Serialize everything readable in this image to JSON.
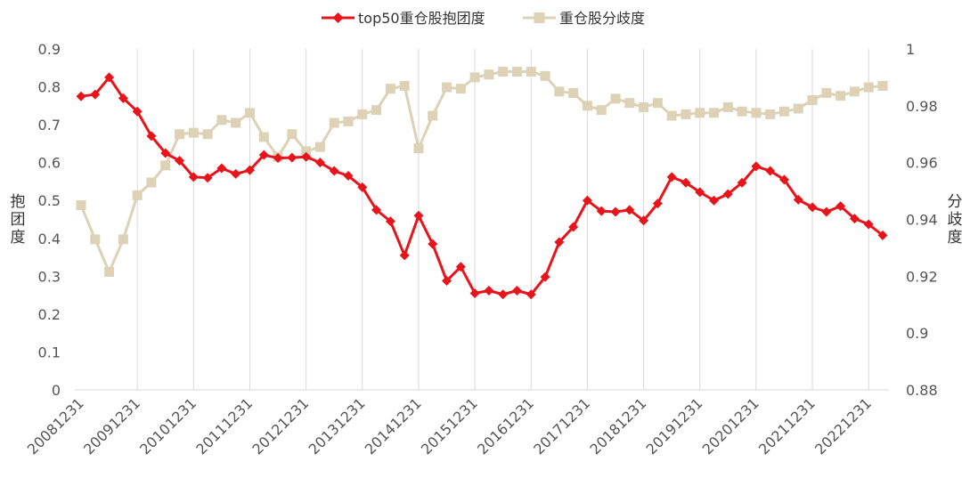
{
  "chart_data": {
    "type": "line",
    "colors": {
      "series1": "#e8141b",
      "series2": "#ddd2b6",
      "grid": "#d9d9d9",
      "text": "#555555"
    },
    "legend_position": "top-center",
    "grid": {
      "vertical": true,
      "horizontal": false
    },
    "x": [
      "20081231",
      "20090331",
      "20090630",
      "20090930",
      "20091231",
      "20100331",
      "20100630",
      "20100930",
      "20101231",
      "20110331",
      "20110630",
      "20110930",
      "20111231",
      "20120331",
      "20120630",
      "20120930",
      "20121231",
      "20130331",
      "20130630",
      "20130930",
      "20131231",
      "20140331",
      "20140630",
      "20140930",
      "20141231",
      "20150331",
      "20150630",
      "20150930",
      "20151231",
      "20160331",
      "20160630",
      "20160930",
      "20161231",
      "20170331",
      "20170630",
      "20170930",
      "20171231",
      "20180331",
      "20180630",
      "20180930",
      "20181231",
      "20190331",
      "20190630",
      "20190930",
      "20191231",
      "20200331",
      "20200630",
      "20200930",
      "20201231",
      "20210331",
      "20210630",
      "20210930",
      "20211231",
      "20220331",
      "20220630",
      "20220930",
      "20221231",
      "20230331"
    ],
    "x_tick_labels": [
      "20081231",
      "20091231",
      "20101231",
      "20111231",
      "20121231",
      "20131231",
      "20141231",
      "20151231",
      "20161231",
      "20171231",
      "20181231",
      "20191231",
      "20201231",
      "20211231",
      "20221231"
    ],
    "y_left": {
      "label": "抱团度",
      "ylim": [
        0,
        0.9
      ],
      "ticks": [
        "0",
        "0.1",
        "0.2",
        "0.3",
        "0.4",
        "0.5",
        "0.6",
        "0.7",
        "0.8",
        "0.9"
      ]
    },
    "y_right": {
      "label": "分歧度",
      "ylim": [
        0.88,
        1.0
      ],
      "ticks": [
        "0.88",
        "0.9",
        "0.92",
        "0.94",
        "0.96",
        "0.98",
        "1"
      ]
    },
    "series": [
      {
        "name": "top50重仓股抱团度",
        "axis": "left",
        "marker": "diamond",
        "values": [
          0.775,
          0.78,
          0.825,
          0.77,
          0.735,
          0.67,
          0.625,
          0.605,
          0.562,
          0.56,
          0.585,
          0.57,
          0.58,
          0.62,
          0.612,
          0.613,
          0.615,
          0.6,
          0.578,
          0.565,
          0.535,
          0.475,
          0.445,
          0.355,
          0.46,
          0.385,
          0.288,
          0.325,
          0.255,
          0.262,
          0.252,
          0.262,
          0.252,
          0.298,
          0.39,
          0.43,
          0.5,
          0.472,
          0.47,
          0.475,
          0.447,
          0.492,
          0.562,
          0.547,
          0.522,
          0.5,
          0.517,
          0.547,
          0.59,
          0.578,
          0.555,
          0.502,
          0.482,
          0.47,
          0.485,
          0.452,
          0.437,
          0.408
        ]
      },
      {
        "name": "重仓股分歧度",
        "axis": "right",
        "marker": "square",
        "values": [
          0.945,
          0.933,
          0.9215,
          0.933,
          0.9485,
          0.953,
          0.959,
          0.97,
          0.9705,
          0.97,
          0.975,
          0.974,
          0.9775,
          0.969,
          0.962,
          0.97,
          0.964,
          0.9655,
          0.974,
          0.9745,
          0.977,
          0.9785,
          0.986,
          0.987,
          0.965,
          0.9765,
          0.9865,
          0.986,
          0.99,
          0.991,
          0.992,
          0.992,
          0.992,
          0.9905,
          0.985,
          0.9845,
          0.98,
          0.9785,
          0.9825,
          0.981,
          0.9795,
          0.981,
          0.9765,
          0.977,
          0.9775,
          0.9775,
          0.9795,
          0.978,
          0.9775,
          0.977,
          0.978,
          0.979,
          0.982,
          0.9845,
          0.9835,
          0.985,
          0.9865,
          0.987
        ]
      }
    ]
  }
}
